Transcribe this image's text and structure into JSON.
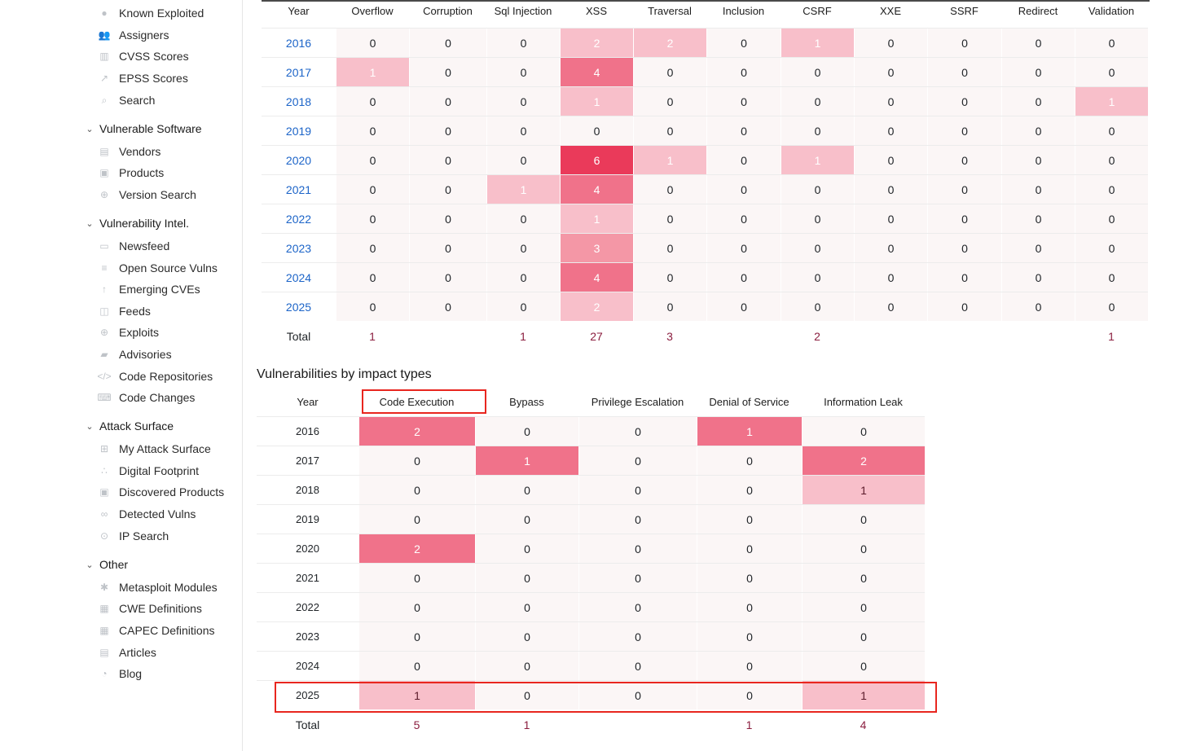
{
  "sidebar": {
    "items": [
      {
        "type": "item",
        "label": "Known Exploited",
        "icon": "fire-icon"
      },
      {
        "type": "item",
        "label": "Assigners",
        "icon": "users-icon"
      },
      {
        "type": "item",
        "label": "CVSS Scores",
        "icon": "chart-icon"
      },
      {
        "type": "item",
        "label": "EPSS Scores",
        "icon": "trend-icon"
      },
      {
        "type": "item",
        "label": "Search",
        "icon": "search-icon"
      },
      {
        "type": "section",
        "label": "Vulnerable Software"
      },
      {
        "type": "item",
        "label": "Vendors",
        "icon": "building-icon"
      },
      {
        "type": "item",
        "label": "Products",
        "icon": "box-icon"
      },
      {
        "type": "item",
        "label": "Version Search",
        "icon": "zoom-icon"
      },
      {
        "type": "section",
        "label": "Vulnerability Intel."
      },
      {
        "type": "item",
        "label": "Newsfeed",
        "icon": "newspaper-icon"
      },
      {
        "type": "item",
        "label": "Open Source Vulns",
        "icon": "database-icon"
      },
      {
        "type": "item",
        "label": "Emerging CVEs",
        "icon": "arrow-up-icon"
      },
      {
        "type": "item",
        "label": "Feeds",
        "icon": "rss-icon"
      },
      {
        "type": "item",
        "label": "Exploits",
        "icon": "crosshair-icon"
      },
      {
        "type": "item",
        "label": "Advisories",
        "icon": "truck-icon"
      },
      {
        "type": "item",
        "label": "Code Repositories",
        "icon": "code-icon"
      },
      {
        "type": "item",
        "label": "Code Changes",
        "icon": "keyboard-icon"
      },
      {
        "type": "section",
        "label": "Attack Surface"
      },
      {
        "type": "item",
        "label": "My Attack Surface",
        "icon": "sitemap-icon"
      },
      {
        "type": "item",
        "label": "Digital Footprint",
        "icon": "footprint-icon"
      },
      {
        "type": "item",
        "label": "Discovered Products",
        "icon": "cube-icon"
      },
      {
        "type": "item",
        "label": "Detected Vulns",
        "icon": "binoculars-icon"
      },
      {
        "type": "item",
        "label": "IP Search",
        "icon": "ip-search-icon"
      },
      {
        "type": "section",
        "label": "Other"
      },
      {
        "type": "item",
        "label": "Metasploit Modules",
        "icon": "modules-icon"
      },
      {
        "type": "item",
        "label": "CWE Definitions",
        "icon": "book-icon"
      },
      {
        "type": "item",
        "label": "CAPEC Definitions",
        "icon": "book-alt-icon"
      },
      {
        "type": "item",
        "label": "Articles",
        "icon": "article-icon"
      },
      {
        "type": "item",
        "label": "Blog",
        "icon": "blog-icon"
      }
    ]
  },
  "top_table": {
    "headers": [
      "Year",
      "Overflow",
      "Corruption",
      "Sql Injection",
      "XSS",
      "Traversal",
      "Inclusion",
      "CSRF",
      "XXE",
      "SSRF",
      "Redirect",
      "Validation"
    ],
    "rows": [
      {
        "year": "2016",
        "values": [
          0,
          0,
          0,
          2,
          2,
          0,
          1,
          0,
          0,
          0,
          0
        ]
      },
      {
        "year": "2017",
        "values": [
          1,
          0,
          0,
          4,
          0,
          0,
          0,
          0,
          0,
          0,
          0
        ]
      },
      {
        "year": "2018",
        "values": [
          0,
          0,
          0,
          1,
          0,
          0,
          0,
          0,
          0,
          0,
          1
        ]
      },
      {
        "year": "2019",
        "values": [
          0,
          0,
          0,
          0,
          0,
          0,
          0,
          0,
          0,
          0,
          0
        ]
      },
      {
        "year": "2020",
        "values": [
          0,
          0,
          0,
          6,
          1,
          0,
          1,
          0,
          0,
          0,
          0
        ]
      },
      {
        "year": "2021",
        "values": [
          0,
          0,
          1,
          4,
          0,
          0,
          0,
          0,
          0,
          0,
          0
        ]
      },
      {
        "year": "2022",
        "values": [
          0,
          0,
          0,
          1,
          0,
          0,
          0,
          0,
          0,
          0,
          0
        ]
      },
      {
        "year": "2023",
        "values": [
          0,
          0,
          0,
          3,
          0,
          0,
          0,
          0,
          0,
          0,
          0
        ]
      },
      {
        "year": "2024",
        "values": [
          0,
          0,
          0,
          4,
          0,
          0,
          0,
          0,
          0,
          0,
          0
        ]
      },
      {
        "year": "2025",
        "values": [
          0,
          0,
          0,
          2,
          0,
          0,
          0,
          0,
          0,
          0,
          0
        ]
      }
    ],
    "total_label": "Total",
    "totals": [
      "1",
      "",
      "1",
      "27",
      "3",
      "",
      "2",
      "",
      "",
      "",
      "1"
    ]
  },
  "bottom_section": {
    "title": "Vulnerabilities by impact types",
    "headers": [
      "Year",
      "Code Execution",
      "Bypass",
      "Privilege Escalation",
      "Denial of Service",
      "Information Leak"
    ],
    "rows": [
      {
        "year": "2016",
        "values": [
          2,
          0,
          0,
          1,
          0
        ]
      },
      {
        "year": "2017",
        "values": [
          0,
          1,
          0,
          0,
          2
        ]
      },
      {
        "year": "2018",
        "values": [
          0,
          0,
          0,
          0,
          1
        ]
      },
      {
        "year": "2019",
        "values": [
          0,
          0,
          0,
          0,
          0
        ]
      },
      {
        "year": "2020",
        "values": [
          2,
          0,
          0,
          0,
          0
        ]
      },
      {
        "year": "2021",
        "values": [
          0,
          0,
          0,
          0,
          0
        ]
      },
      {
        "year": "2022",
        "values": [
          0,
          0,
          0,
          0,
          0
        ]
      },
      {
        "year": "2023",
        "values": [
          0,
          0,
          0,
          0,
          0
        ]
      },
      {
        "year": "2024",
        "values": [
          0,
          0,
          0,
          0,
          0
        ]
      },
      {
        "year": "2025",
        "values": [
          1,
          0,
          0,
          0,
          1
        ]
      }
    ],
    "total_label": "Total",
    "totals": [
      "5",
      "1",
      "",
      "1",
      "4"
    ]
  },
  "colors": {
    "zero_cell": "#fbf6f6",
    "heat_light": "#f8bfca",
    "heat_mid": "#f497a6",
    "heat_strong": "#f0728a",
    "heat_max": "#ea3a5a",
    "link": "#1c64c8",
    "total_text": "#8b1e3f",
    "annotation": "#e8261f"
  }
}
